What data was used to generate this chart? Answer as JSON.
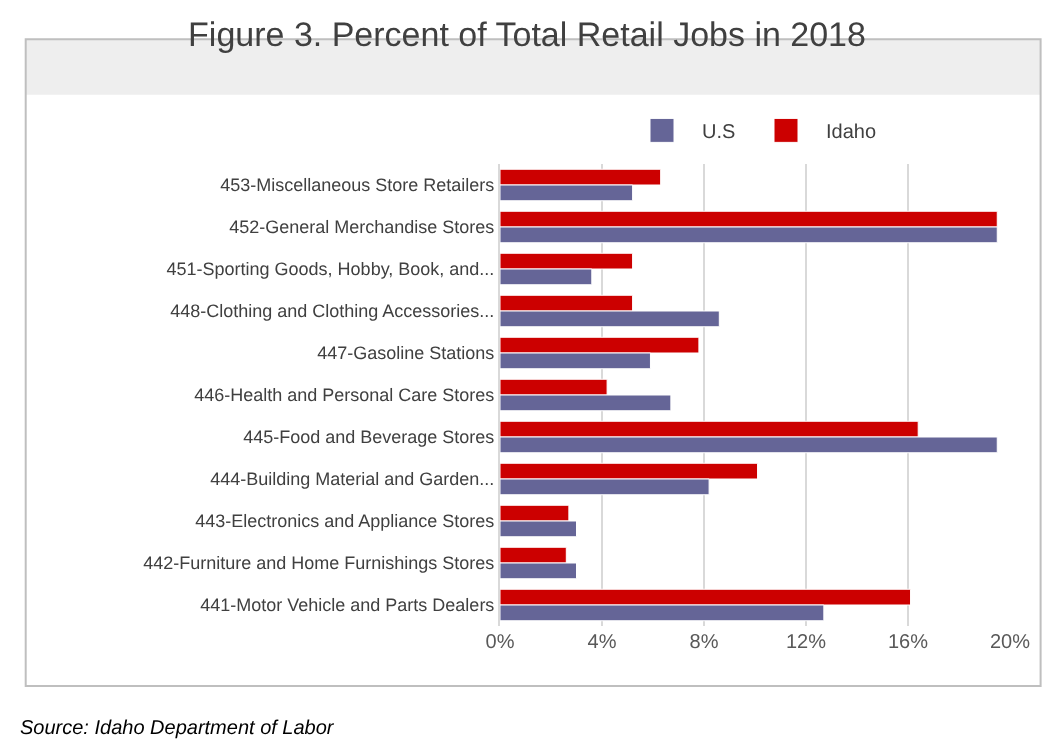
{
  "chart_data": {
    "type": "bar",
    "orientation": "horizontal",
    "title": "Figure 3. Percent of Total Retail Jobs in 2018",
    "categories": [
      "453-Miscellaneous Store Retailers",
      "452-General Merchandise Stores",
      "451-Sporting Goods, Hobby, Book, and...",
      "448-Clothing and Clothing Accessories...",
      "447-Gasoline Stations",
      "446-Health and Personal Care Stores",
      "445-Food and Beverage Stores",
      "444-Building Material and Garden...",
      "443-Electronics and Appliance Stores",
      "442-Furniture and Home Furnishings Stores",
      "441-Motor Vehicle and Parts Dealers"
    ],
    "series": [
      {
        "name": "U.S",
        "color": "#656597",
        "values": [
          5.2,
          19.5,
          3.6,
          8.6,
          5.9,
          6.7,
          19.5,
          8.2,
          3.0,
          3.0,
          12.7
        ]
      },
      {
        "name": "Idaho",
        "color": "#cc0000",
        "values": [
          6.3,
          19.5,
          5.2,
          5.2,
          7.8,
          4.2,
          16.4,
          10.1,
          2.7,
          2.6,
          16.1
        ]
      }
    ],
    "xlim": [
      0,
      20
    ],
    "xticks": [
      {
        "value": 0,
        "label": "0%"
      },
      {
        "value": 4,
        "label": "4%"
      },
      {
        "value": 8,
        "label": "8%"
      },
      {
        "value": 12,
        "label": "12%"
      },
      {
        "value": 16,
        "label": "16%"
      },
      {
        "value": 20,
        "label": "20%"
      }
    ],
    "grid": "x",
    "legend": "top",
    "annotations": [
      "Source: Idaho Department of Labor"
    ]
  }
}
